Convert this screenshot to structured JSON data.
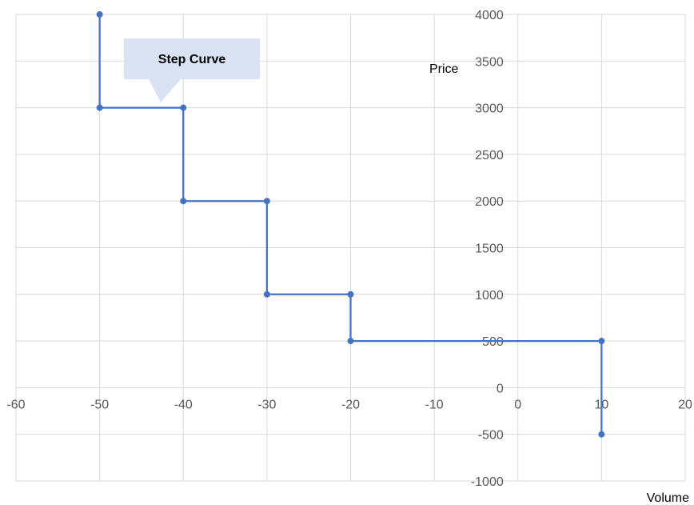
{
  "chart_data": {
    "type": "line",
    "step": true,
    "xlim": [
      -60,
      20
    ],
    "ylim": [
      -1000,
      4000
    ],
    "x_ticks": [
      -60,
      -50,
      -40,
      -30,
      -20,
      -10,
      0,
      10,
      20
    ],
    "y_ticks": [
      -1000,
      -500,
      0,
      500,
      1000,
      1500,
      2000,
      2500,
      3000,
      3500,
      4000
    ],
    "xlabel": "Volume",
    "ylabel": "Price",
    "grid": true,
    "annotation": "Step Curve",
    "series": [
      {
        "points": [
          [
            -50,
            4000
          ],
          [
            -50,
            3000
          ],
          [
            -40,
            3000
          ],
          [
            -40,
            2000
          ],
          [
            -30,
            2000
          ],
          [
            -30,
            1000
          ],
          [
            -20,
            1000
          ],
          [
            -20,
            500
          ],
          [
            10,
            500
          ],
          [
            10,
            -500
          ]
        ]
      }
    ],
    "colors": {
      "series": "#4472c4",
      "callout_fill": "#dae3f3",
      "grid": "#d9d9d9"
    }
  }
}
